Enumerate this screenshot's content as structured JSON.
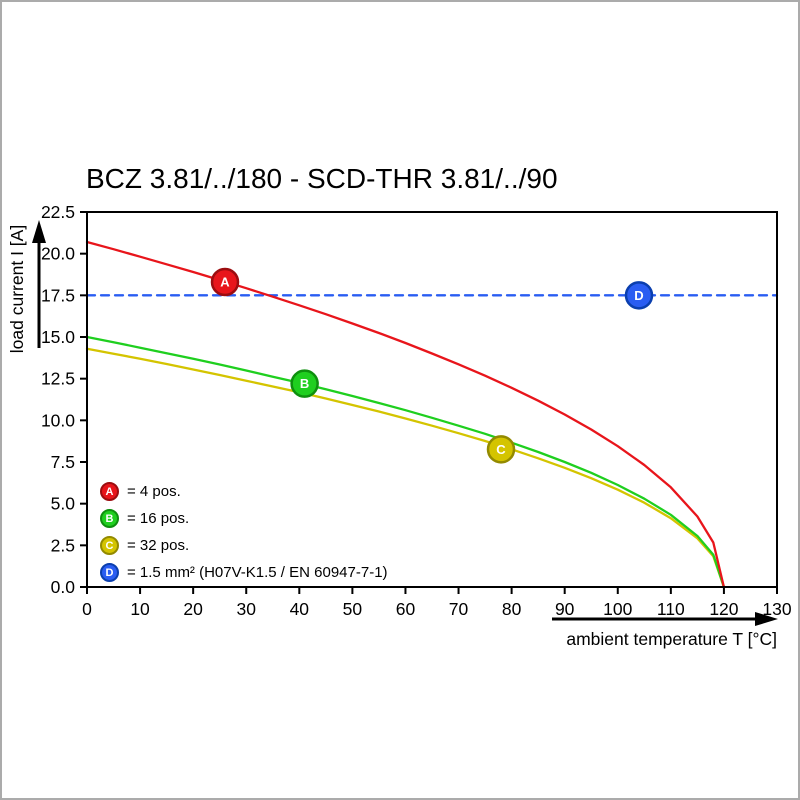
{
  "frame": {
    "border_color": "#ababab",
    "background": "#ffffff"
  },
  "chart_data": {
    "type": "line",
    "title": "BCZ 3.81/../180 - SCD-THR 3.81/../90",
    "xlabel": "ambient temperature T [°C]",
    "ylabel": "load current I [A]",
    "xlim": [
      0,
      130
    ],
    "ylim": [
      0,
      22.5
    ],
    "grid": false,
    "legend_position": "lower-left-inside",
    "xticks": [
      0,
      10,
      20,
      30,
      40,
      50,
      60,
      70,
      80,
      90,
      100,
      110,
      120,
      130
    ],
    "xtick_labels": [
      "0",
      "10",
      "20",
      "30",
      "40",
      "50",
      "60",
      "70",
      "80",
      "90",
      "100",
      "110",
      "120",
      "130"
    ],
    "yticks": [
      0,
      2.5,
      5,
      7.5,
      10,
      12.5,
      15,
      17.5,
      20,
      22.5
    ],
    "ytick_labels": [
      "0.0",
      "2.5",
      "5.0",
      "7.5",
      "10.0",
      "12.5",
      "15.0",
      "17.5",
      "20.0",
      "22.5"
    ],
    "series": [
      {
        "id": "A",
        "label": "= 4 pos.",
        "color": "#e8151b",
        "ring": "#9c0d10",
        "dashed": false,
        "marker_at": {
          "x": 26,
          "y": 18.3
        },
        "x": [
          0,
          5,
          10,
          15,
          20,
          25,
          30,
          35,
          40,
          45,
          50,
          55,
          60,
          65,
          70,
          75,
          80,
          85,
          90,
          95,
          100,
          105,
          110,
          115,
          118,
          120
        ],
        "y": [
          20.7,
          20.27,
          19.82,
          19.36,
          18.9,
          18.42,
          17.93,
          17.42,
          16.9,
          16.37,
          15.81,
          15.24,
          14.64,
          14.01,
          13.36,
          12.68,
          11.95,
          11.18,
          10.35,
          9.45,
          8.45,
          7.32,
          5.98,
          4.23,
          2.67,
          0
        ]
      },
      {
        "id": "B",
        "label": "= 16 pos.",
        "color": "#1fcf1f",
        "ring": "#0e8f0e",
        "dashed": false,
        "marker_at": {
          "x": 41,
          "y": 12.2
        },
        "x": [
          0,
          5,
          10,
          15,
          20,
          25,
          30,
          35,
          40,
          45,
          50,
          55,
          60,
          65,
          70,
          75,
          80,
          85,
          90,
          95,
          100,
          105,
          110,
          115,
          118,
          120
        ],
        "y": [
          15,
          14.69,
          14.36,
          14.03,
          13.69,
          13.35,
          12.99,
          12.62,
          12.25,
          11.86,
          11.46,
          11.04,
          10.61,
          10.15,
          9.68,
          9.19,
          8.66,
          8.1,
          7.5,
          6.85,
          6.12,
          5.3,
          4.33,
          3.06,
          1.94,
          0
        ]
      },
      {
        "id": "C",
        "label": "= 32 pos.",
        "color": "#d4c400",
        "ring": "#938a00",
        "dashed": false,
        "marker_at": {
          "x": 78,
          "y": 8.26
        },
        "x": [
          0,
          5,
          10,
          15,
          20,
          25,
          30,
          35,
          40,
          45,
          50,
          55,
          60,
          65,
          70,
          75,
          80,
          85,
          90,
          95,
          100,
          105,
          110,
          115,
          118,
          120
        ],
        "y": [
          14.3,
          14,
          13.69,
          13.38,
          13.05,
          12.72,
          12.38,
          12.03,
          11.68,
          11.31,
          10.92,
          10.53,
          10.11,
          9.68,
          9.23,
          8.76,
          8.26,
          7.72,
          7.15,
          6.53,
          5.84,
          5.06,
          4.13,
          2.92,
          1.85,
          0
        ]
      },
      {
        "id": "D",
        "label": "= 1.5 mm² (H07V-K1.5 / EN 60947-7-1)",
        "color": "#2a5df2",
        "ring": "#0b3fae",
        "dashed": true,
        "marker_at": {
          "x": 104,
          "y": 17.5
        },
        "x": [
          0,
          130
        ],
        "y": [
          17.5,
          17.5
        ]
      }
    ]
  }
}
